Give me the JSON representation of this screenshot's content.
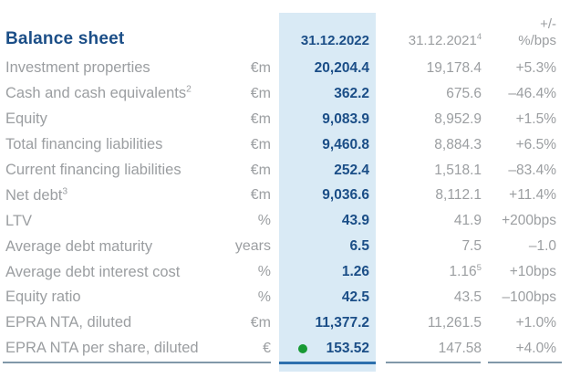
{
  "title": "Balance sheet",
  "columns": {
    "current": {
      "label": "31.12.2022"
    },
    "previous": {
      "label": "31.12.2021",
      "sup": "4"
    },
    "change": {
      "line1": "+/-",
      "line2": "%/bps"
    }
  },
  "rows": [
    {
      "label": "Investment properties",
      "label_sup": "",
      "unit": "€m",
      "v2022": "20,204.4",
      "v2021": "19,178.4",
      "v2021_sup": "",
      "change": "+5.3%",
      "dot": false
    },
    {
      "label": "Cash and cash equivalents",
      "label_sup": "2",
      "unit": "€m",
      "v2022": "362.2",
      "v2021": "675.6",
      "v2021_sup": "",
      "change": "–46.4%",
      "dot": false
    },
    {
      "label": "Equity",
      "label_sup": "",
      "unit": "€m",
      "v2022": "9,083.9",
      "v2021": "8,952.9",
      "v2021_sup": "",
      "change": "+1.5%",
      "dot": false
    },
    {
      "label": "Total financing liabilities",
      "label_sup": "",
      "unit": "€m",
      "v2022": "9,460.8",
      "v2021": "8,884.3",
      "v2021_sup": "",
      "change": "+6.5%",
      "dot": false
    },
    {
      "label": "Current financing liabilities",
      "label_sup": "",
      "unit": "€m",
      "v2022": "252.4",
      "v2021": "1,518.1",
      "v2021_sup": "",
      "change": "–83.4%",
      "dot": false
    },
    {
      "label": "Net debt",
      "label_sup": "3",
      "unit": "€m",
      "v2022": "9,036.6",
      "v2021": "8,112.1",
      "v2021_sup": "",
      "change": "+11.4%",
      "dot": false
    },
    {
      "label": "LTV",
      "label_sup": "",
      "unit": "%",
      "v2022": "43.9",
      "v2021": "41.9",
      "v2021_sup": "",
      "change": "+200bps",
      "dot": false
    },
    {
      "label": "Average debt maturity",
      "label_sup": "",
      "unit": "years",
      "v2022": "6.5",
      "v2021": "7.5",
      "v2021_sup": "",
      "change": "–1.0",
      "dot": false
    },
    {
      "label": "Average debt interest cost",
      "label_sup": "",
      "unit": "%",
      "v2022": "1.26",
      "v2021": "1.16",
      "v2021_sup": "5",
      "change": "+10bps",
      "dot": false
    },
    {
      "label": "Equity ratio",
      "label_sup": "",
      "unit": "%",
      "v2022": "42.5",
      "v2021": "43.5",
      "v2021_sup": "",
      "change": "–100bps",
      "dot": false
    },
    {
      "label": "EPRA NTA, diluted",
      "label_sup": "",
      "unit": "€m",
      "v2022": "11,377.2",
      "v2021": "11,261.5",
      "v2021_sup": "",
      "change": "+1.0%",
      "dot": false
    },
    {
      "label": "EPRA NTA per share, diluted",
      "label_sup": "",
      "unit": "€",
      "v2022": "153.52",
      "v2021": "147.58",
      "v2021_sup": "",
      "change": "+4.0%",
      "dot": true
    }
  ],
  "colors": {
    "navy": "#1b4e87",
    "gray_text": "#9b9ea1",
    "band_blue": "#d9eaf5",
    "rule_gray": "#8198a9",
    "rule_blue": "#2d70ad",
    "dot_green": "#189a34"
  }
}
